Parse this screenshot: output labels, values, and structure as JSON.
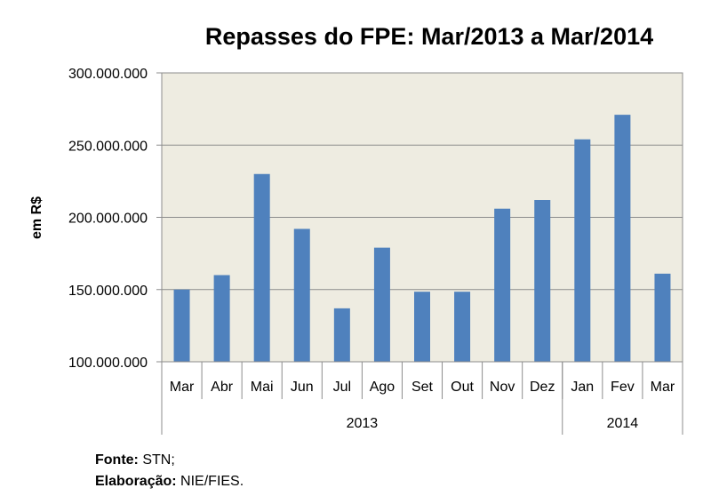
{
  "chart_data": {
    "type": "bar",
    "title": "Repasses do FPE: Mar/2013 a Mar/2014",
    "ylabel": "em R$",
    "xlabel": "",
    "categories": [
      "Mar",
      "Abr",
      "Mai",
      "Jun",
      "Jul",
      "Ago",
      "Set",
      "Out",
      "Nov",
      "Dez",
      "Jan",
      "Fev",
      "Mar"
    ],
    "year_groups": [
      {
        "label": "2013",
        "count": 10
      },
      {
        "label": "2014",
        "count": 3
      }
    ],
    "values": [
      150000000,
      160000000,
      230000000,
      192000000,
      137000000,
      179000000,
      148500000,
      148500000,
      206000000,
      212000000,
      254000000,
      271000000,
      161000000
    ],
    "ylim": [
      100000000,
      300000000
    ],
    "yticks": [
      100000000,
      150000000,
      200000000,
      250000000,
      300000000
    ],
    "ytick_labels": [
      "100.000.000",
      "150.000.000",
      "200.000.000",
      "250.000.000",
      "300.000.000"
    ],
    "grid": true,
    "colors": {
      "bar": "#4f81bd",
      "plot_background": "#eeece1",
      "grid": "#8c8c8c",
      "axis": "#8c8c8c"
    }
  },
  "footer": {
    "source_label": "Fonte:",
    "source_value": "STN;",
    "prepared_label": "Elaboração:",
    "prepared_value": "NIE/FIES."
  }
}
